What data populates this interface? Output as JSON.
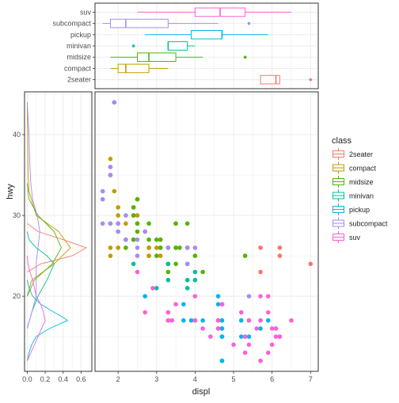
{
  "chart_data": [
    {
      "type": "boxplot",
      "orientation": "horizontal",
      "categories": [
        "2seater",
        "compact",
        "midsize",
        "minivan",
        "pickup",
        "subcompact",
        "suv"
      ],
      "box_stats": [
        {
          "category": "2seater",
          "min": 5.7,
          "q1": 5.7,
          "median": 6.1,
          "q3": 6.2,
          "max": 6.2,
          "outliers": [
            7.0
          ]
        },
        {
          "category": "compact",
          "min": 1.8,
          "q1": 2.0,
          "median": 2.2,
          "q3": 2.8,
          "max": 3.3,
          "outliers": []
        },
        {
          "category": "midsize",
          "min": 1.8,
          "q1": 2.5,
          "median": 2.8,
          "q3": 3.5,
          "max": 4.2,
          "outliers": [
            5.3
          ]
        },
        {
          "category": "minivan",
          "min": 3.3,
          "q1": 3.3,
          "median": 3.3,
          "q3": 3.8,
          "max": 4.0,
          "outliers": [
            2.4
          ]
        },
        {
          "category": "pickup",
          "min": 2.7,
          "q1": 3.9,
          "median": 4.7,
          "q3": 4.7,
          "max": 5.9,
          "outliers": []
        },
        {
          "category": "subcompact",
          "min": 1.6,
          "q1": 1.8,
          "median": 2.2,
          "q3": 3.3,
          "max": 4.6,
          "outliers": [
            5.4
          ]
        },
        {
          "category": "suv",
          "min": 2.5,
          "q1": 4.0,
          "median": 4.65,
          "q3": 5.3,
          "max": 6.5,
          "outliers": []
        }
      ],
      "xlim": [
        1.4,
        7.2
      ]
    },
    {
      "type": "density",
      "ylabel": "hwy",
      "xlim": [
        -0.03,
        0.72
      ],
      "ylim": [
        10.7,
        45.3
      ],
      "xticks": [
        "0.0",
        "0.2",
        "0.4",
        "0.6"
      ],
      "yticks": [
        "20",
        "30",
        "40"
      ],
      "series": [
        {
          "name": "2seater",
          "points": [
            [
              23,
              0
            ],
            [
              24,
              0.15
            ],
            [
              25,
              0.5
            ],
            [
              26,
              0.66
            ],
            [
              27,
              0.4
            ],
            [
              28,
              0.12
            ],
            [
              29,
              0
            ]
          ]
        },
        {
          "name": "compact",
          "points": [
            [
              20,
              0
            ],
            [
              22,
              0.05
            ],
            [
              24,
              0.3
            ],
            [
              26,
              0.48
            ],
            [
              28,
              0.35
            ],
            [
              30,
              0.1
            ],
            [
              33,
              0.02
            ],
            [
              35,
              0.01
            ],
            [
              40,
              0.005
            ],
            [
              44,
              0
            ]
          ]
        },
        {
          "name": "midsize",
          "points": [
            [
              20,
              0
            ],
            [
              22,
              0.08
            ],
            [
              24,
              0.28
            ],
            [
              26,
              0.38
            ],
            [
              28,
              0.3
            ],
            [
              30,
              0.12
            ],
            [
              32,
              0.02
            ],
            [
              34,
              0
            ]
          ]
        },
        {
          "name": "minivan",
          "points": [
            [
              16,
              0
            ],
            [
              18,
              0.05
            ],
            [
              20,
              0.12
            ],
            [
              22,
              0.22
            ],
            [
              24,
              0.3
            ],
            [
              25,
              0.22
            ],
            [
              26,
              0.1
            ],
            [
              27,
              0.02
            ],
            [
              28,
              0
            ]
          ]
        },
        {
          "name": "pickup",
          "points": [
            [
              12,
              0
            ],
            [
              13,
              0.02
            ],
            [
              14,
              0.05
            ],
            [
              15,
              0.1
            ],
            [
              16,
              0.25
            ],
            [
              17,
              0.45
            ],
            [
              17.5,
              0.38
            ],
            [
              18,
              0.3
            ],
            [
              19,
              0.15
            ],
            [
              20,
              0.06
            ],
            [
              21,
              0.02
            ],
            [
              22,
              0
            ]
          ]
        },
        {
          "name": "subcompact",
          "points": [
            [
              16,
              0
            ],
            [
              18,
              0.05
            ],
            [
              20,
              0.1
            ],
            [
              22,
              0.1
            ],
            [
              24,
              0.1
            ],
            [
              26,
              0.12
            ],
            [
              28,
              0.14
            ],
            [
              30,
              0.11
            ],
            [
              32,
              0.06
            ],
            [
              34,
              0.04
            ],
            [
              36,
              0.03
            ],
            [
              38,
              0.025
            ],
            [
              40,
              0.02
            ],
            [
              42,
              0.01
            ],
            [
              44,
              0
            ]
          ]
        },
        {
          "name": "suv",
          "points": [
            [
              12,
              0
            ],
            [
              13,
              0.04
            ],
            [
              14,
              0.08
            ],
            [
              15,
              0.12
            ],
            [
              16,
              0.16
            ],
            [
              17,
              0.2
            ],
            [
              18,
              0.18
            ],
            [
              19,
              0.15
            ],
            [
              20,
              0.1
            ],
            [
              21,
              0.08
            ],
            [
              22,
              0.06
            ],
            [
              23,
              0.03
            ],
            [
              24,
              0.01
            ],
            [
              25,
              0
            ]
          ]
        }
      ]
    },
    {
      "type": "scatter",
      "xlabel": "displ",
      "xlim": [
        1.4,
        7.2
      ],
      "ylim": [
        10.7,
        45.3
      ],
      "xticks": [
        "2",
        "3",
        "4",
        "5",
        "6",
        "7"
      ],
      "legend": {
        "title": "class",
        "position": "right",
        "labels": [
          "2seater",
          "compact",
          "midsize",
          "minivan",
          "pickup",
          "subcompact",
          "suv"
        ]
      },
      "points": [
        [
          "2seater",
          5.7,
          26
        ],
        [
          "2seater",
          5.7,
          23
        ],
        [
          "2seater",
          6.2,
          26
        ],
        [
          "2seater",
          6.2,
          25
        ],
        [
          "2seater",
          7.0,
          24
        ],
        [
          "compact",
          1.8,
          29
        ],
        [
          "compact",
          1.8,
          29
        ],
        [
          "compact",
          2.0,
          31
        ],
        [
          "compact",
          2.0,
          30
        ],
        [
          "compact",
          2.8,
          26
        ],
        [
          "compact",
          2.8,
          26
        ],
        [
          "compact",
          3.1,
          27
        ],
        [
          "compact",
          1.8,
          26
        ],
        [
          "compact",
          1.8,
          25
        ],
        [
          "compact",
          2.0,
          28
        ],
        [
          "compact",
          2.0,
          26
        ],
        [
          "compact",
          2.8,
          25
        ],
        [
          "compact",
          3.1,
          25
        ],
        [
          "compact",
          2.7,
          28
        ],
        [
          "compact",
          2.4,
          27
        ],
        [
          "compact",
          2.4,
          30
        ],
        [
          "compact",
          3.1,
          26
        ],
        [
          "compact",
          3.5,
          29
        ],
        [
          "compact",
          2.5,
          29
        ],
        [
          "compact",
          2.2,
          29
        ],
        [
          "compact",
          1.9,
          33
        ],
        [
          "compact",
          2.0,
          29
        ],
        [
          "compact",
          1.8,
          37
        ],
        [
          "compact",
          1.8,
          35
        ],
        [
          "compact",
          1.9,
          44
        ],
        [
          "compact",
          2.5,
          30
        ],
        [
          "compact",
          2.5,
          32
        ],
        [
          "compact",
          2.2,
          27
        ],
        [
          "compact",
          2.4,
          31
        ],
        [
          "compact",
          3.0,
          26
        ],
        [
          "compact",
          3.3,
          24
        ],
        [
          "compact",
          1.8,
          36
        ],
        [
          "compact",
          2.0,
          29
        ],
        [
          "compact",
          2.8,
          25
        ],
        [
          "midsize",
          2.4,
          27
        ],
        [
          "midsize",
          2.4,
          30
        ],
        [
          "midsize",
          2.8,
          27
        ],
        [
          "midsize",
          3.1,
          26
        ],
        [
          "midsize",
          3.5,
          29
        ],
        [
          "midsize",
          3.6,
          26
        ],
        [
          "midsize",
          3.8,
          26
        ],
        [
          "midsize",
          5.3,
          25
        ],
        [
          "midsize",
          2.4,
          31
        ],
        [
          "midsize",
          3.0,
          27
        ],
        [
          "midsize",
          3.3,
          26
        ],
        [
          "midsize",
          3.3,
          24
        ],
        [
          "midsize",
          3.8,
          26
        ],
        [
          "midsize",
          4.2,
          23
        ],
        [
          "midsize",
          2.5,
          29
        ],
        [
          "midsize",
          2.5,
          32
        ],
        [
          "midsize",
          3.5,
          26
        ],
        [
          "midsize",
          2.4,
          27
        ],
        [
          "midsize",
          3.5,
          26
        ],
        [
          "midsize",
          4.0,
          25
        ],
        [
          "midsize",
          2.8,
          29
        ],
        [
          "midsize",
          3.0,
          25
        ],
        [
          "midsize",
          3.1,
          27
        ],
        [
          "midsize",
          2.5,
          28
        ],
        [
          "midsize",
          2.2,
          26
        ],
        [
          "midsize",
          3.3,
          23
        ],
        [
          "midsize",
          3.8,
          29
        ],
        [
          "midsize",
          3.5,
          24
        ],
        [
          "minivan",
          3.8,
          22
        ],
        [
          "minivan",
          4.0,
          23
        ],
        [
          "minivan",
          3.3,
          24
        ],
        [
          "minivan",
          3.3,
          22
        ],
        [
          "minivan",
          3.8,
          21
        ],
        [
          "minivan",
          2.4,
          24
        ],
        [
          "minivan",
          3.0,
          21
        ],
        [
          "minivan",
          3.3,
          17
        ],
        [
          "minivan",
          3.8,
          24
        ],
        [
          "minivan",
          4.0,
          22
        ],
        [
          "pickup",
          2.7,
          20
        ],
        [
          "pickup",
          3.7,
          19
        ],
        [
          "pickup",
          3.9,
          17
        ],
        [
          "pickup",
          4.7,
          17
        ],
        [
          "pickup",
          5.2,
          17
        ],
        [
          "pickup",
          5.7,
          16
        ],
        [
          "pickup",
          4.6,
          19
        ],
        [
          "pickup",
          5.4,
          17
        ],
        [
          "pickup",
          4.7,
          15
        ],
        [
          "pickup",
          4.0,
          17
        ],
        [
          "pickup",
          3.7,
          17
        ],
        [
          "pickup",
          4.7,
          12
        ],
        [
          "pickup",
          5.2,
          15
        ],
        [
          "pickup",
          5.4,
          15
        ],
        [
          "pickup",
          4.2,
          17
        ],
        [
          "pickup",
          4.6,
          16
        ],
        [
          "pickup",
          5.7,
          17
        ],
        [
          "pickup",
          4.6,
          20
        ],
        [
          "pickup",
          4.7,
          19
        ],
        [
          "pickup",
          4.7,
          17
        ],
        [
          "pickup",
          4.7,
          16
        ],
        [
          "pickup",
          5.9,
          17
        ],
        [
          "pickup",
          4.7,
          12
        ],
        [
          "pickup",
          4.7,
          15
        ],
        [
          "pickup",
          4.7,
          16
        ],
        [
          "subcompact",
          1.6,
          33
        ],
        [
          "subcompact",
          1.6,
          32
        ],
        [
          "subcompact",
          1.8,
          36
        ],
        [
          "subcompact",
          2.0,
          29
        ],
        [
          "subcompact",
          2.5,
          27
        ],
        [
          "subcompact",
          3.3,
          26
        ],
        [
          "subcompact",
          3.8,
          26
        ],
        [
          "subcompact",
          4.6,
          17
        ],
        [
          "subcompact",
          5.4,
          20
        ],
        [
          "subcompact",
          4.0,
          26
        ],
        [
          "subcompact",
          2.0,
          28
        ],
        [
          "subcompact",
          2.2,
          27
        ],
        [
          "subcompact",
          1.8,
          29
        ],
        [
          "subcompact",
          1.9,
          44
        ],
        [
          "subcompact",
          2.5,
          26
        ],
        [
          "subcompact",
          2.7,
          28
        ],
        [
          "subcompact",
          3.8,
          24
        ],
        [
          "subcompact",
          1.8,
          35
        ],
        [
          "subcompact",
          1.6,
          29
        ],
        [
          "subcompact",
          2.5,
          25
        ],
        [
          "subcompact",
          2.2,
          30
        ],
        [
          "suv",
          5.7,
          20
        ],
        [
          "suv",
          5.7,
          17
        ],
        [
          "suv",
          6.1,
          16
        ],
        [
          "suv",
          5.3,
          15
        ],
        [
          "suv",
          4.6,
          16
        ],
        [
          "suv",
          4.0,
          20
        ],
        [
          "suv",
          2.5,
          23
        ],
        [
          "suv",
          4.7,
          19
        ],
        [
          "suv",
          5.2,
          18
        ],
        [
          "suv",
          5.4,
          17
        ],
        [
          "suv",
          5.3,
          15
        ],
        [
          "suv",
          6.5,
          17
        ],
        [
          "suv",
          4.2,
          16
        ],
        [
          "suv",
          3.3,
          18
        ],
        [
          "suv",
          6.0,
          16
        ],
        [
          "suv",
          6.2,
          15
        ],
        [
          "suv",
          4.0,
          17
        ],
        [
          "suv",
          2.7,
          18
        ],
        [
          "suv",
          3.4,
          17
        ],
        [
          "suv",
          4.6,
          17
        ],
        [
          "suv",
          4.4,
          15
        ],
        [
          "suv",
          5.9,
          18
        ],
        [
          "suv",
          3.5,
          19
        ],
        [
          "suv",
          3.3,
          17
        ],
        [
          "suv",
          5.9,
          20
        ],
        [
          "suv",
          4.7,
          19
        ],
        [
          "suv",
          5.4,
          14
        ],
        [
          "suv",
          5.6,
          16
        ],
        [
          "suv",
          5.0,
          14
        ],
        [
          "suv",
          5.7,
          12
        ],
        [
          "suv",
          5.3,
          13
        ],
        [
          "suv",
          6.1,
          16
        ],
        [
          "suv",
          6.0,
          14
        ],
        [
          "suv",
          6.2,
          15
        ],
        [
          "suv",
          5.9,
          13
        ],
        [
          "suv",
          4.6,
          17
        ],
        [
          "suv",
          2.9,
          21
        ],
        [
          "suv",
          6.1,
          15
        ],
        [
          "suv",
          4.7,
          19
        ]
      ]
    }
  ],
  "colors": {
    "2seater": "#F8766D",
    "compact": "#C49A00",
    "midsize": "#53B400",
    "minivan": "#00C094",
    "pickup": "#00B6EB",
    "subcompact": "#A58AFF",
    "suv": "#FB61D7",
    "grid": "#ebebeb",
    "panel_border": "#333333",
    "text": "#4d4d4d"
  }
}
